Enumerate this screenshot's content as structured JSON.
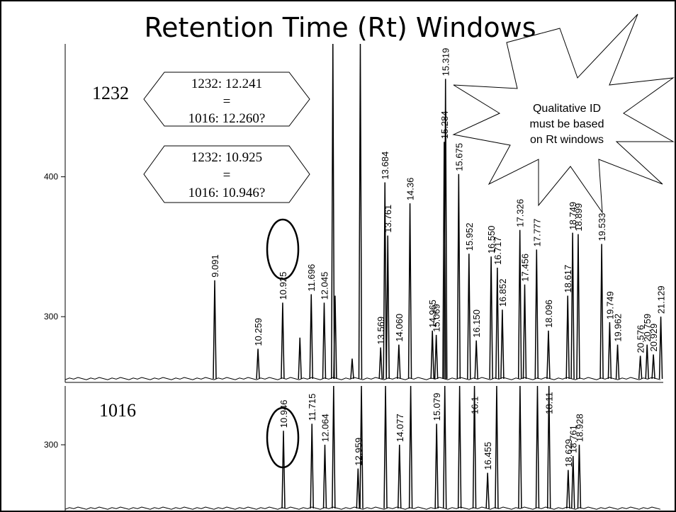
{
  "title": "Retention Time (Rt) Windows",
  "callouts": [
    {
      "lines": [
        "1232: 12.241",
        "=",
        "1016: 12.260?"
      ]
    },
    {
      "lines": [
        "1232: 10.925",
        "=",
        "1016: 10.946?"
      ]
    }
  ],
  "starburst": {
    "lines": [
      "Qualitative ID",
      "must be based",
      "on Rt windows"
    ]
  },
  "chart_data": [
    {
      "type": "chromatogram",
      "sample": "1232",
      "ylim": [
        253,
        495
      ],
      "yticks": [
        300,
        400
      ],
      "peaks": [
        {
          "rt": 9.091,
          "height": 326
        },
        {
          "rt": 10.259,
          "height": 277
        },
        {
          "rt": 10.925,
          "height": 310
        },
        {
          "rt": 11.696,
          "height": 316
        },
        {
          "rt": 12.045,
          "height": 310
        },
        {
          "rt": 13.569,
          "height": 278
        },
        {
          "rt": 13.684,
          "height": 396
        },
        {
          "rt": 13.761,
          "height": 358
        },
        {
          "rt": {
            "value": 14.06,
            "label": "14.060"
          },
          "height": 280
        },
        {
          "rt": 14.36,
          "height": 381
        },
        {
          "rt": 14.965,
          "height": 290
        },
        {
          "rt": 15.069,
          "height": 287
        },
        {
          "rt": 15.284,
          "height": 425
        },
        {
          "rt": 15.319,
          "height": 470
        },
        {
          "rt": 15.675,
          "height": 402
        },
        {
          "rt": 15.952,
          "height": 345
        },
        {
          "rt": {
            "value": 16.15,
            "label": "16.150"
          },
          "height": 283
        },
        {
          "rt": {
            "value": 16.55,
            "label": "16.550"
          },
          "height": 343
        },
        {
          "rt": 16.717,
          "height": 335
        },
        {
          "rt": 16.852,
          "height": 305
        },
        {
          "rt": 17.326,
          "height": 362
        },
        {
          "rt": 17.456,
          "height": 323
        },
        {
          "rt": 17.777,
          "height": 348
        },
        {
          "rt": 18.096,
          "height": 290
        },
        {
          "rt": 18.617,
          "height": 315
        },
        {
          "rt": 18.749,
          "height": 360
        },
        {
          "rt": 18.899,
          "height": 359
        },
        {
          "rt": 19.533,
          "height": 352
        },
        {
          "rt": 19.749,
          "height": 296
        },
        {
          "rt": 19.962,
          "height": 280
        },
        {
          "rt": 20.576,
          "height": 272
        },
        {
          "rt": 20.759,
          "height": 280
        },
        {
          "rt": 20.929,
          "height": 273
        },
        {
          "rt": 21.129,
          "height": 300
        }
      ],
      "unlabeled_peaks": [
        {
          "rt": 11.39,
          "height": 285
        },
        {
          "rt": 12.28,
          "height": 495
        },
        {
          "rt": 12.34,
          "height": 315
        },
        {
          "rt": 13.02,
          "height": 495
        },
        {
          "rt": 12.8,
          "height": 270
        }
      ]
    },
    {
      "type": "chromatogram",
      "sample": "1016",
      "ylim": [
        252,
        342
      ],
      "yticks": [
        300
      ],
      "peaks": [
        {
          "rt": 10.946,
          "height": 310
        },
        {
          "rt": 11.715,
          "height": 315
        },
        {
          "rt": 12.064,
          "height": 300
        },
        {
          "rt": 12.959,
          "height": 283
        },
        {
          "rt": 14.077,
          "height": 300
        },
        {
          "rt": 15.079,
          "height": 315
        },
        {
          "rt": 16.1,
          "height": 342
        },
        {
          "rt": 16.455,
          "height": 280
        },
        {
          "rt": 18.11,
          "height": 342
        },
        {
          "rt": 18.629,
          "height": 282
        },
        {
          "rt": 18.761,
          "height": 292
        },
        {
          "rt": 18.928,
          "height": 300
        }
      ],
      "unlabeled_peaks": [
        {
          "rt": 12.3,
          "height": 342
        },
        {
          "rt": 13.05,
          "height": 342
        },
        {
          "rt": 13.7,
          "height": 342
        },
        {
          "rt": 14.38,
          "height": 342
        },
        {
          "rt": 15.3,
          "height": 342
        },
        {
          "rt": 15.7,
          "height": 342
        },
        {
          "rt": 16.7,
          "height": 342
        },
        {
          "rt": 17.33,
          "height": 342
        },
        {
          "rt": 17.8,
          "height": 342
        }
      ]
    }
  ]
}
